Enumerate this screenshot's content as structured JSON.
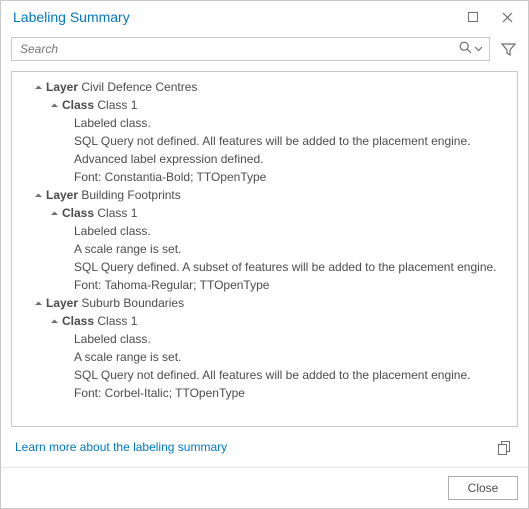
{
  "window": {
    "title": "Labeling Summary"
  },
  "search": {
    "placeholder": "Search"
  },
  "tree": {
    "layer_label": "Layer",
    "class_label": "Class",
    "layers": [
      {
        "name": "Civil Defence Centres",
        "class_name": "Class 1",
        "details": [
          "Labeled class.",
          "SQL Query not defined. All features will be added to the placement engine.",
          "Advanced label expression defined.",
          "Font: Constantia-Bold; TTOpenType"
        ]
      },
      {
        "name": "Building Footprints",
        "class_name": "Class 1",
        "details": [
          "Labeled class.",
          "A scale range is set.",
          "SQL Query defined. A subset of features will be added to the placement engine.",
          "Font: Tahoma-Regular; TTOpenType"
        ]
      },
      {
        "name": "Suburb Boundaries",
        "class_name": "Class 1",
        "details": [
          "Labeled class.",
          "A scale range is set.",
          "SQL Query not defined. All features will be added to the placement engine.",
          "Font: Corbel-Italic; TTOpenType"
        ]
      }
    ]
  },
  "link": {
    "text": "Learn more about the labeling summary"
  },
  "footer": {
    "close_label": "Close"
  },
  "colors": {
    "accent": "#0079c1",
    "border": "#c9c9c9",
    "text": "#4c4c4c",
    "muted": "#6e6e6e",
    "background": "#ffffff"
  }
}
